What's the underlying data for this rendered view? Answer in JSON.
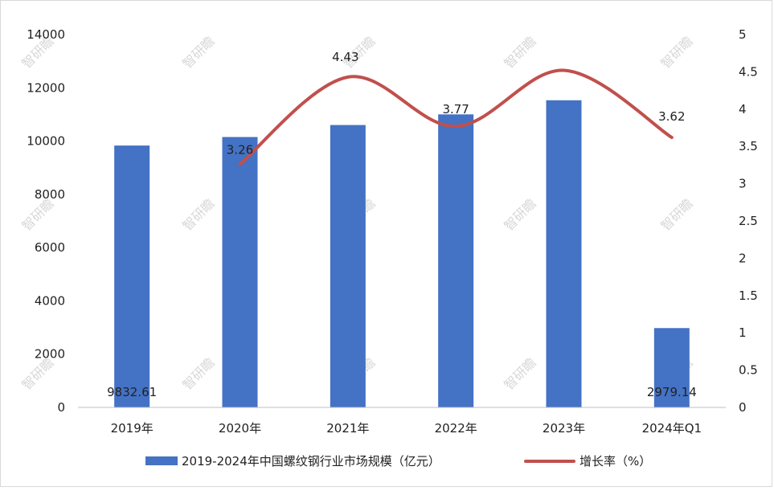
{
  "chart_data": {
    "type": "bar+line",
    "categories": [
      "2019年",
      "2020年",
      "2021年",
      "2022年",
      "2023年",
      "2024年Q1"
    ],
    "series": [
      {
        "name": "2019-2024年中国螺纹钢行业市场规模（亿元）",
        "type": "bar",
        "axis": "left",
        "color": "#4472C4",
        "values": [
          9832.61,
          10153.2,
          10603.0,
          11003.0,
          11533.0,
          2979.14
        ],
        "labels": [
          "9832.61",
          "",
          "",
          "",
          "",
          "2979.14"
        ]
      },
      {
        "name": "增长率（%）",
        "type": "line",
        "axis": "right",
        "color": "#C0504D",
        "values": [
          null,
          3.26,
          4.43,
          3.77,
          4.52,
          3.62
        ],
        "labels": [
          "",
          "3.26",
          "4.43",
          "3.77",
          "",
          "3.62"
        ]
      }
    ],
    "left_axis": {
      "min": 0,
      "max": 14000,
      "ticks": [
        "0",
        "2000",
        "4000",
        "6000",
        "8000",
        "10000",
        "12000",
        "14000"
      ]
    },
    "right_axis": {
      "min": 0,
      "max": 5,
      "ticks": [
        "0",
        "0.5",
        "1",
        "1.5",
        "2",
        "2.5",
        "3",
        "3.5",
        "4",
        "4.5",
        "5"
      ]
    },
    "legend_position": "bottom",
    "watermark": "智研瞻"
  }
}
